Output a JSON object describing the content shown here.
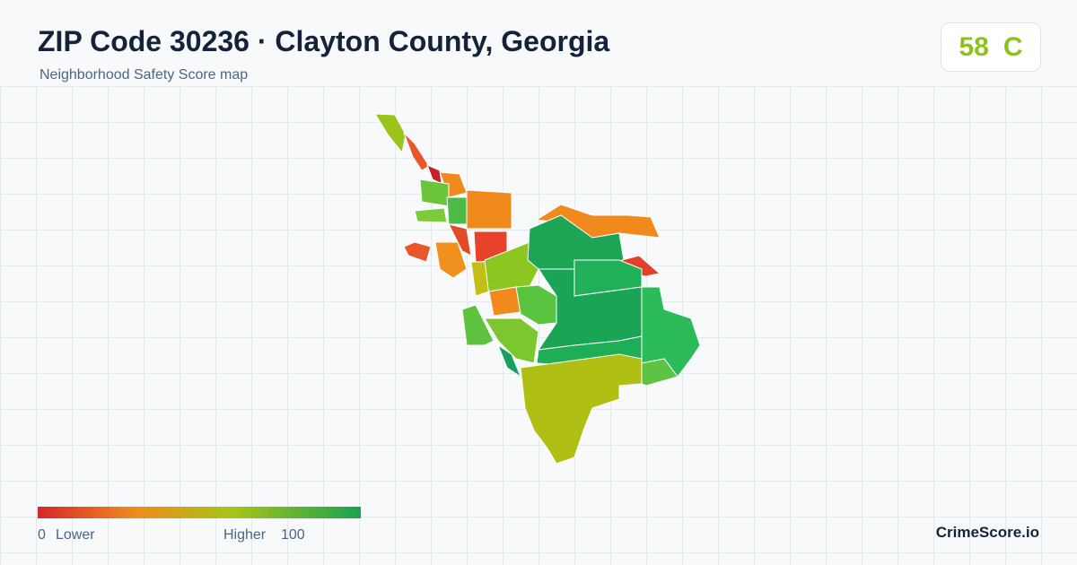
{
  "header": {
    "title": "ZIP Code 30236 · Clayton County, Georgia",
    "subtitle": "Neighborhood Safety Score map"
  },
  "score": {
    "value": 58,
    "grade": "C"
  },
  "legend": {
    "min": 0,
    "min_label": "Lower",
    "max_label": "Higher",
    "max": 100
  },
  "brand": "CrimeScore.io"
}
